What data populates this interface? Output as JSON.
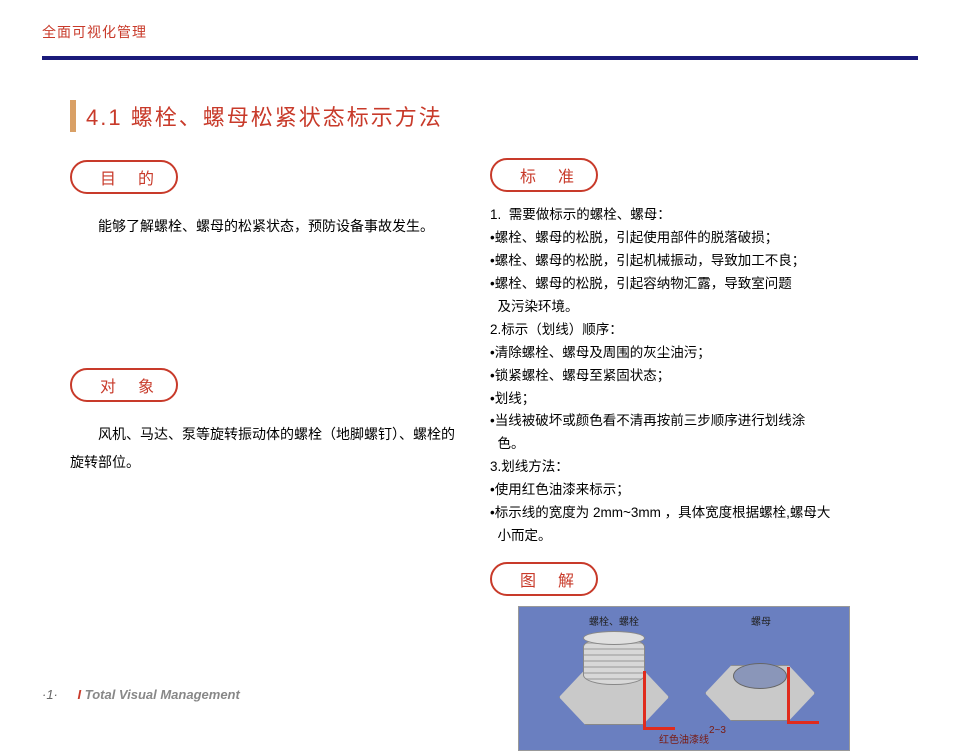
{
  "header": {
    "brand": "全面可视化管理",
    "rule_color": "#1a1a7a"
  },
  "title": "4.1 螺栓、螺母松紧状态标示方法",
  "left": {
    "purpose_label_a": "目",
    "purpose_label_b": "的",
    "purpose_text": "能够了解螺栓、螺母的松紧状态，预防设备事故发生。",
    "target_label_a": "对",
    "target_label_b": "象",
    "target_text": "风机、马达、泵等旋转振动体的螺栓（地脚螺钉）、螺栓的旋转部位。"
  },
  "right": {
    "standard_label_a": "标",
    "standard_label_b": "准",
    "standard_lines": [
      "1.  需要做标示的螺栓、螺母：",
      "•螺栓、螺母的松脱，引起使用部件的脱落破损；",
      "•螺栓、螺母的松脱，引起机械振动，导致加工不良；",
      "•螺栓、螺母的松脱，引起容纳物汇露，导致室问题\n  及污染环境。",
      "2.标示（划线）顺序：",
      "•清除螺栓、螺母及周围的灰尘油污；",
      "•锁紧螺栓、螺母至紧固状态；",
      "•划线；",
      "•当线被破坏或颜色看不清再按前三步顺序进行划线涂\n  色。",
      "3.划线方法：",
      "•使用红色油漆来标示；",
      "•标示线的宽度为 2mm~3mm ，具体宽度根据螺栓,螺母大\n  小而定。"
    ],
    "figure_label_a": "图",
    "figure_label_b": "解",
    "fig_caption_left": "螺栓、螺栓",
    "fig_caption_right": "螺母",
    "fig_dim": "2~3",
    "fig_bottom": "红色油漆线",
    "fig_bg": "#6a7fc0",
    "mark_color": "#e02b1d"
  },
  "footer": {
    "page": "·1·",
    "slash": "I ",
    "title": "Total Visual Management"
  },
  "colors": {
    "accent": "#c83a2a",
    "pill_border": "#c83a2a",
    "title_bar": "#d9a066"
  }
}
